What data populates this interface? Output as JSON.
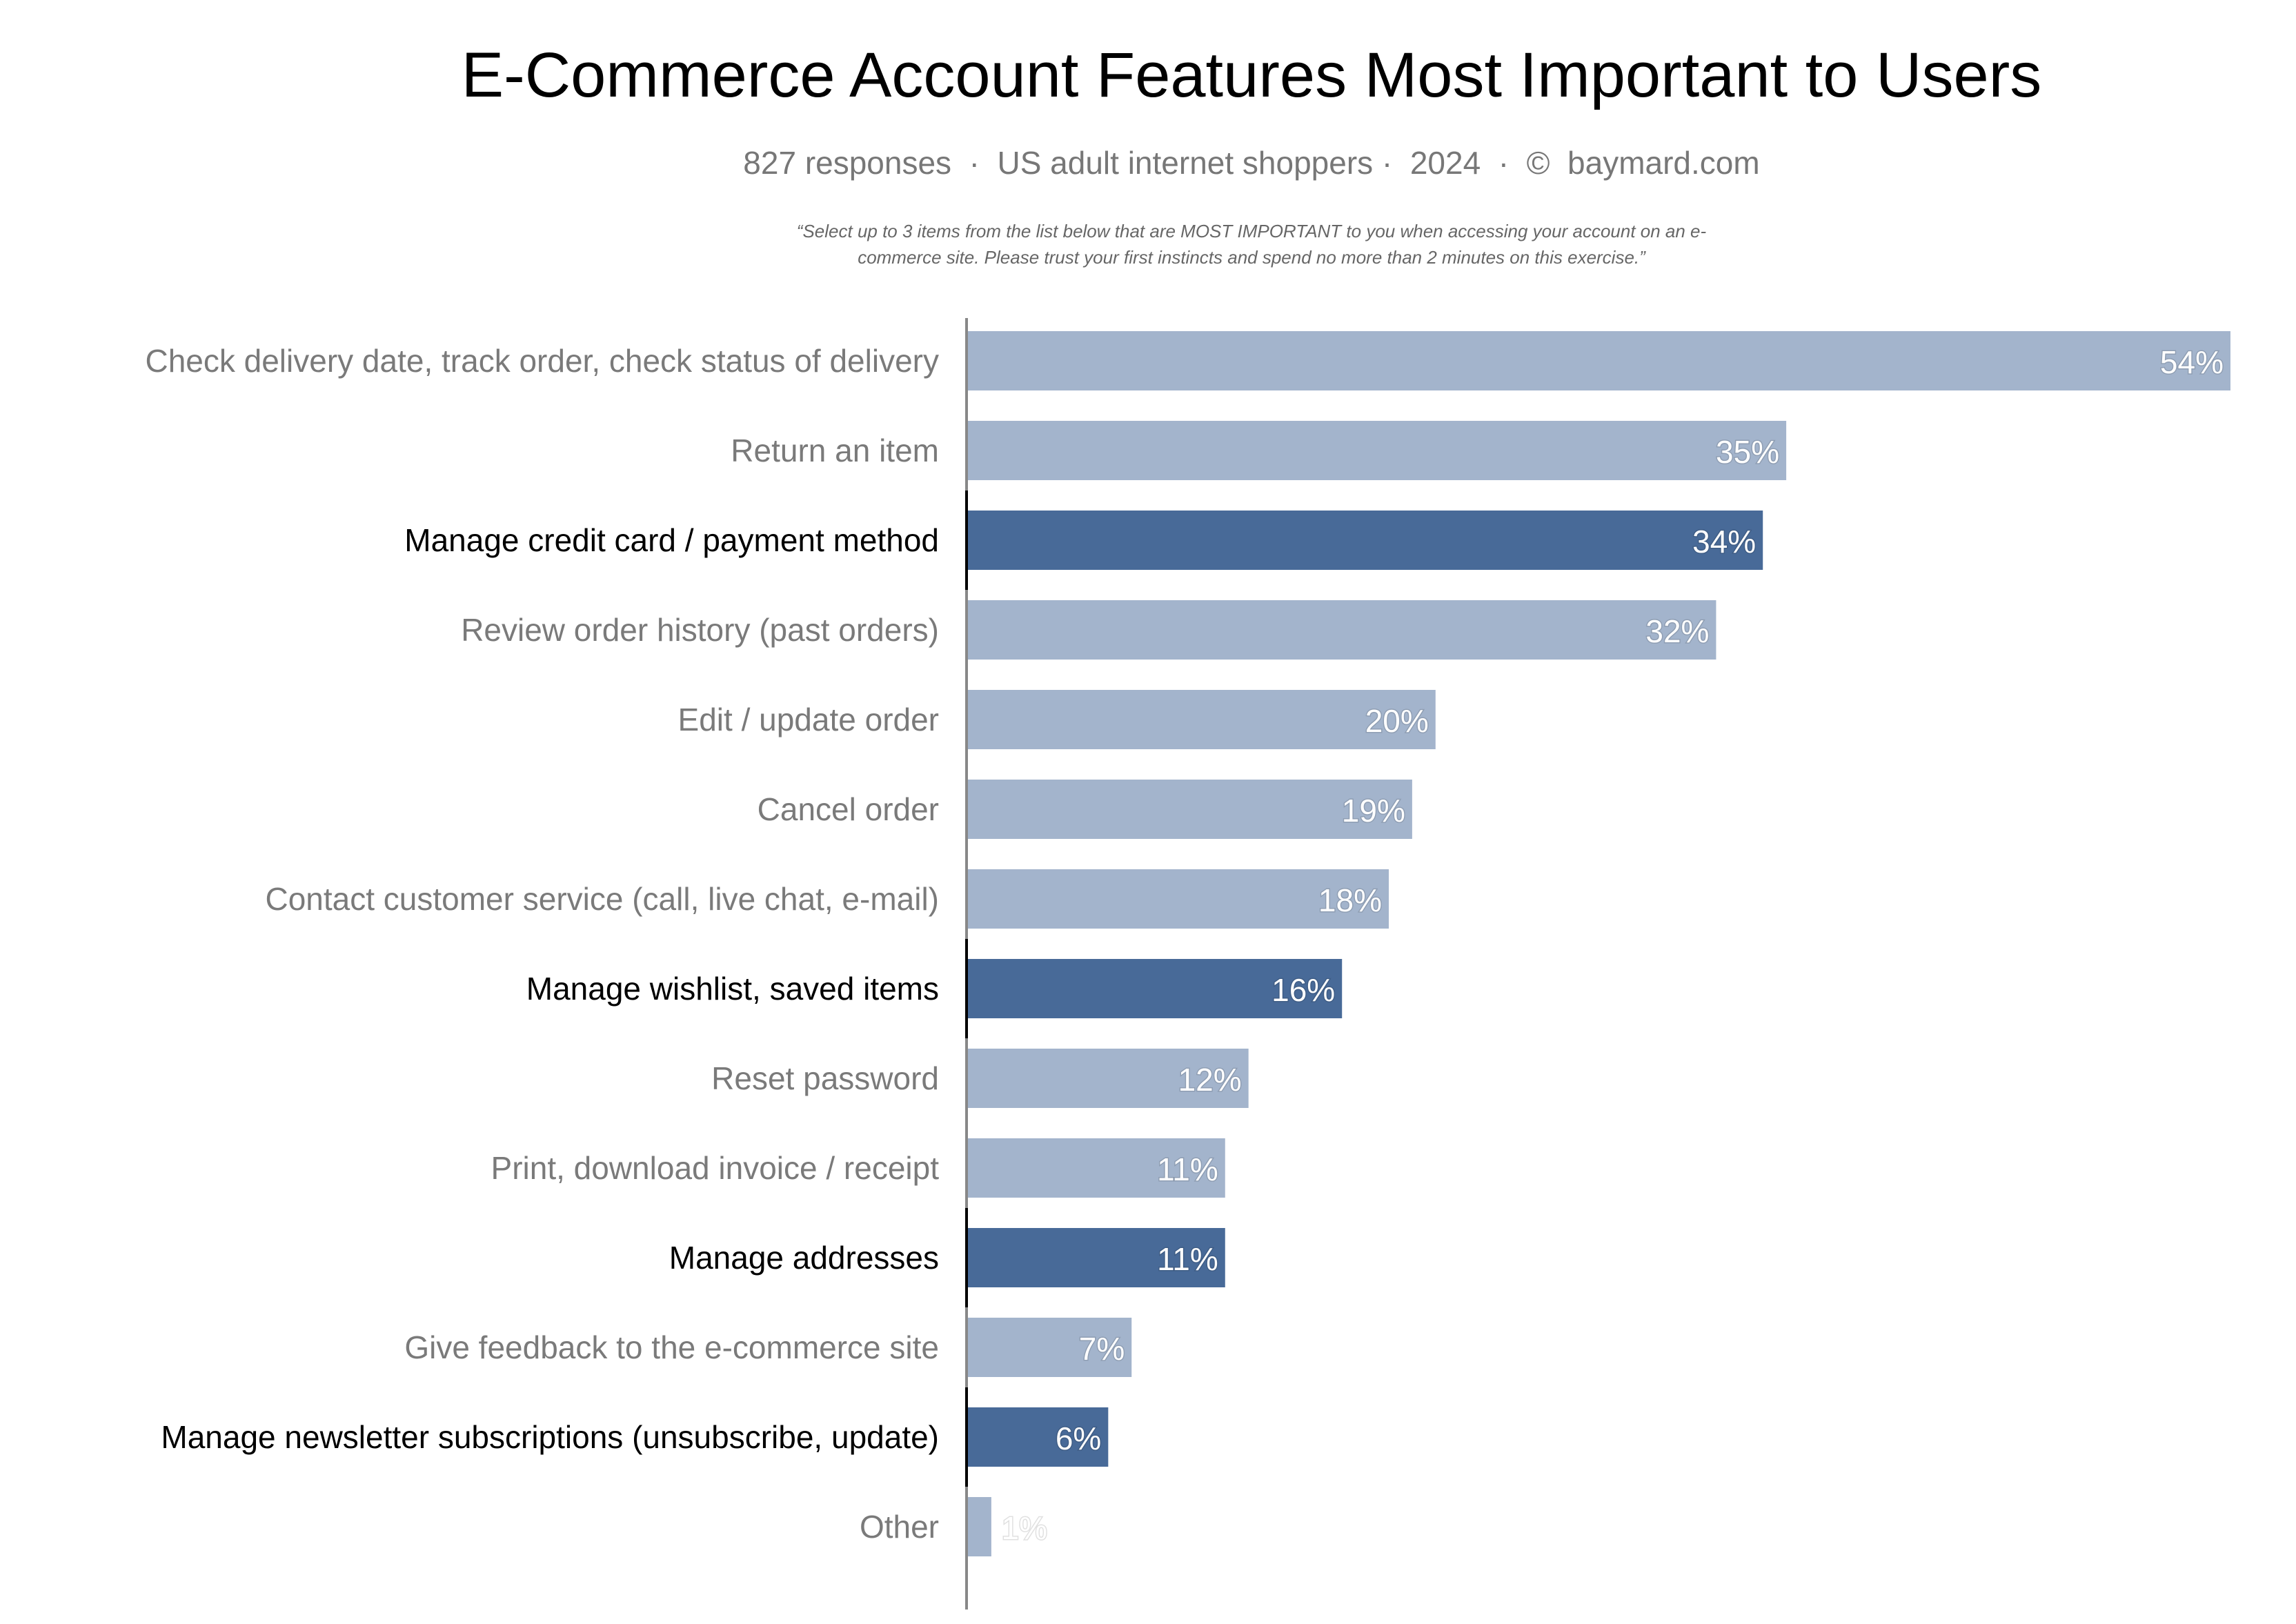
{
  "chart_data": {
    "type": "bar",
    "orientation": "horizontal",
    "title": "E-Commerce Account Features Most Important to Users",
    "subtitle": "827 responses  ·  US adult internet shoppers ·  2024  ·  ©  baymard.com",
    "question": [
      "“Select up to 3 items from the list below that are MOST IMPORTANT to you when accessing your account on an e-",
      "commerce site. Please trust your first instincts and spend no more than 2 minutes on this exercise.”"
    ],
    "categories": [
      "Check delivery date, track order, check status of delivery",
      "Return an item",
      "Manage credit card / payment method",
      "Review order history (past orders)",
      "Edit / update order",
      "Cancel order",
      "Contact customer service (call, live chat, e-mail)",
      "Manage wishlist, saved items",
      "Reset password",
      "Print, download invoice / receipt",
      "Manage addresses",
      "Give feedback to the e-commerce site",
      "Manage newsletter subscriptions (unsubscribe, update)",
      "Other"
    ],
    "values": [
      54,
      35,
      34,
      32,
      20,
      19,
      18,
      16,
      12,
      11,
      11,
      7,
      6,
      1
    ],
    "value_labels": [
      "54%",
      "35%",
      "34%",
      "32%",
      "20%",
      "19%",
      "18%",
      "16%",
      "12%",
      "11%",
      "11%",
      "7%",
      "6%",
      "1%"
    ],
    "highlighted": [
      false,
      false,
      true,
      false,
      false,
      false,
      false,
      true,
      false,
      false,
      true,
      false,
      true,
      false
    ],
    "unit": "%",
    "xlim": [
      0,
      54
    ],
    "grid": false,
    "colors": {
      "bar": "#a3b4cc",
      "bar_highlight": "#486a98",
      "label": "#7a7a7a",
      "label_highlight": "#000000",
      "axis": "#888888"
    }
  }
}
